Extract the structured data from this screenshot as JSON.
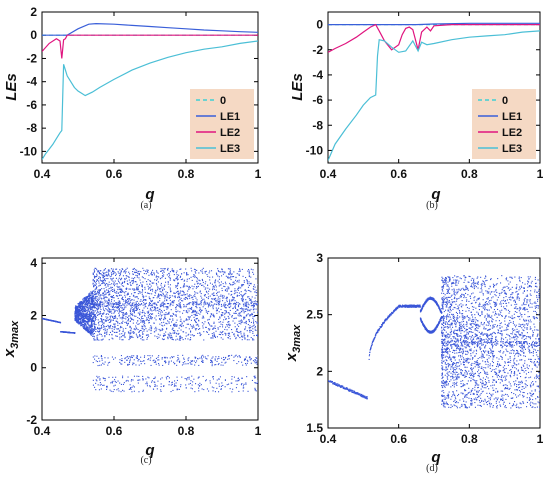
{
  "chart_data": [
    {
      "type": "line",
      "caption": "(a)",
      "xlabel": "q",
      "ylabel": "LEs",
      "xlim": [
        0.4,
        1
      ],
      "ylim": [
        -11,
        2
      ],
      "xticks": [
        "0.4",
        "0.6",
        "0.8",
        "1"
      ],
      "yticks": [
        "2",
        "0",
        "-2",
        "-4",
        "-6",
        "-8",
        "-10"
      ],
      "legend": {
        "placement": "bottom-right",
        "background": "#f5d9c4"
      },
      "series": [
        {
          "name": "0",
          "color": "#3fd0d4",
          "dashed": true,
          "x": [
            0.4,
            1
          ],
          "y": [
            0,
            0
          ]
        },
        {
          "name": "LE1",
          "color": "#3a5fd9",
          "dashed": false,
          "x": [
            0.4,
            0.42,
            0.44,
            0.45,
            0.455,
            0.46,
            0.465,
            0.47,
            0.5,
            0.53,
            0.55,
            0.6,
            0.65,
            0.7,
            0.75,
            0.8,
            0.85,
            0.9,
            0.95,
            1.0
          ],
          "y": [
            0,
            0,
            0,
            0,
            0,
            0,
            0,
            0,
            0.55,
            0.95,
            1.0,
            0.95,
            0.85,
            0.75,
            0.65,
            0.55,
            0.45,
            0.38,
            0.3,
            0.25
          ]
        },
        {
          "name": "LE2",
          "color": "#e0157f",
          "dashed": false,
          "x": [
            0.4,
            0.42,
            0.44,
            0.45,
            0.455,
            0.46,
            0.465,
            0.47,
            0.48,
            0.5,
            0.55,
            0.6,
            0.7,
            0.8,
            0.9,
            1.0
          ],
          "y": [
            -1.4,
            -0.7,
            -0.3,
            -0.5,
            -2.0,
            -0.4,
            -0.3,
            0,
            0,
            0,
            0,
            0,
            0,
            0,
            0,
            0
          ]
        },
        {
          "name": "LE3",
          "color": "#4bbfd6",
          "dashed": false,
          "x": [
            0.4,
            0.41,
            0.42,
            0.43,
            0.44,
            0.45,
            0.455,
            0.46,
            0.465,
            0.47,
            0.48,
            0.49,
            0.5,
            0.51,
            0.52,
            0.54,
            0.56,
            0.6,
            0.65,
            0.7,
            0.75,
            0.8,
            0.85,
            0.9,
            0.95,
            1.0
          ],
          "y": [
            -10.7,
            -10.2,
            -9.8,
            -9.4,
            -8.9,
            -8.4,
            -8.2,
            -2.5,
            -3.0,
            -3.5,
            -4.0,
            -4.5,
            -4.8,
            -5.0,
            -5.2,
            -4.9,
            -4.5,
            -3.8,
            -3.0,
            -2.4,
            -1.9,
            -1.5,
            -1.2,
            -1.0,
            -0.7,
            -0.5
          ]
        }
      ]
    },
    {
      "type": "line",
      "caption": "(b)",
      "xlabel": "q",
      "ylabel": "LEs",
      "xlim": [
        0.4,
        1
      ],
      "ylim": [
        -11,
        1
      ],
      "xticks": [
        "0.4",
        "0.6",
        "0.8",
        "1"
      ],
      "yticks": [
        "0",
        "-2",
        "-4",
        "-6",
        "-8",
        "-10"
      ],
      "legend": {
        "placement": "bottom-right",
        "background": "#f5d9c4"
      },
      "series": [
        {
          "name": "0",
          "color": "#3fd0d4",
          "dashed": true,
          "x": [
            0.4,
            1
          ],
          "y": [
            0,
            0
          ]
        },
        {
          "name": "LE1",
          "color": "#3a5fd9",
          "dashed": false,
          "x": [
            0.4,
            0.5,
            0.53,
            0.6,
            0.65,
            0.7,
            0.8,
            0.9,
            1.0
          ],
          "y": [
            0,
            0,
            0,
            0,
            0,
            0.05,
            0.1,
            0.1,
            0.1
          ]
        },
        {
          "name": "LE2",
          "color": "#e0157f",
          "dashed": false,
          "x": [
            0.4,
            0.42,
            0.45,
            0.48,
            0.5,
            0.52,
            0.535,
            0.545,
            0.56,
            0.58,
            0.6,
            0.61,
            0.62,
            0.63,
            0.64,
            0.655,
            0.665,
            0.68,
            0.69,
            0.7,
            0.75,
            0.8,
            0.85,
            0.9,
            1.0
          ],
          "y": [
            -2.2,
            -1.9,
            -1.5,
            -1.0,
            -0.6,
            -0.2,
            0,
            -0.5,
            -1.3,
            -2.0,
            -1.6,
            -0.8,
            -0.3,
            -0.2,
            -0.4,
            -2.0,
            -0.6,
            -0.2,
            -0.5,
            -0.1,
            0,
            0,
            0,
            0,
            0
          ]
        },
        {
          "name": "LE3",
          "color": "#4bbfd6",
          "dashed": false,
          "x": [
            0.4,
            0.42,
            0.45,
            0.48,
            0.5,
            0.52,
            0.535,
            0.54,
            0.545,
            0.56,
            0.58,
            0.6,
            0.62,
            0.64,
            0.655,
            0.665,
            0.68,
            0.7,
            0.75,
            0.8,
            0.85,
            0.9,
            0.95,
            1.0
          ],
          "y": [
            -10.8,
            -9.5,
            -8.3,
            -7.2,
            -6.4,
            -5.8,
            -5.6,
            -2.5,
            -1.2,
            -1.3,
            -1.8,
            -2.2,
            -2.1,
            -1.3,
            -2.1,
            -1.4,
            -1.6,
            -1.5,
            -1.2,
            -1.0,
            -0.9,
            -0.8,
            -0.6,
            -0.5
          ]
        }
      ]
    },
    {
      "type": "scatter",
      "caption": "(c)",
      "xlabel": "q",
      "ylabel": "x3max",
      "ylabel_main": "x",
      "ylabel_sub": "3max",
      "xlim": [
        0.4,
        1
      ],
      "ylim": [
        -2,
        4.2
      ],
      "xticks": [
        "0.4",
        "0.6",
        "0.8",
        "1"
      ],
      "yticks": [
        "4",
        "2",
        "0",
        "-2"
      ],
      "color": "#3a56d8",
      "features": [
        {
          "kind": "branch",
          "x": [
            0.4,
            0.45
          ],
          "y": [
            1.9,
            1.75
          ]
        },
        {
          "kind": "branch",
          "x": [
            0.45,
            0.49
          ],
          "y": [
            1.4,
            1.35
          ]
        },
        {
          "kind": "dense_band",
          "x": [
            0.49,
            0.54
          ],
          "y": [
            1.2,
            3.0
          ]
        },
        {
          "kind": "chaotic_band",
          "x": [
            0.54,
            1.0
          ],
          "y": [
            1.0,
            3.9
          ]
        },
        {
          "kind": "sparse_band",
          "x": [
            0.54,
            1.0
          ],
          "y": [
            0.1,
            0.5
          ]
        },
        {
          "kind": "sparse_band",
          "x": [
            0.54,
            1.0
          ],
          "y": [
            -0.9,
            -0.3
          ]
        }
      ]
    },
    {
      "type": "scatter",
      "caption": "(d)",
      "xlabel": "q",
      "ylabel": "x3max",
      "ylabel_main": "x",
      "ylabel_sub": "3max",
      "xlim": [
        0.4,
        1
      ],
      "ylim": [
        1.5,
        3
      ],
      "xticks": [
        "0.4",
        "0.6",
        "0.8",
        "1"
      ],
      "yticks": [
        "3",
        "2.5",
        "2",
        "1.5"
      ],
      "color": "#3a56d8",
      "features": [
        {
          "kind": "branch",
          "x": [
            0.4,
            0.51
          ],
          "y": [
            1.92,
            1.77
          ]
        },
        {
          "kind": "branch_rise",
          "x": [
            0.515,
            0.6
          ],
          "y": [
            2.1,
            2.58
          ]
        },
        {
          "kind": "branch",
          "x": [
            0.6,
            0.66
          ],
          "y": [
            2.58,
            2.58
          ]
        },
        {
          "kind": "bifurcation",
          "x": [
            0.66,
            0.72
          ],
          "y": [
            2.35,
            2.65
          ]
        },
        {
          "kind": "chaotic_band",
          "x": [
            0.72,
            1.0
          ],
          "y": [
            1.65,
            2.88
          ]
        }
      ]
    }
  ]
}
